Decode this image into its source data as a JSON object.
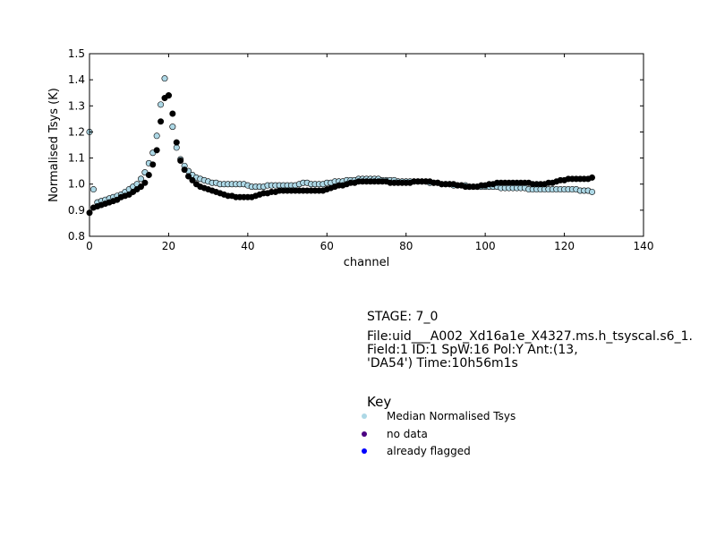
{
  "chart_data": {
    "type": "scatter",
    "title": "",
    "xlabel": "channel",
    "ylabel": "Normalised Tsys (K)",
    "xlim": [
      0,
      140
    ],
    "ylim": [
      0.8,
      1.5
    ],
    "xticks": [
      0,
      20,
      40,
      60,
      80,
      100,
      120,
      140
    ],
    "yticks": [
      0.8,
      0.9,
      1.0,
      1.1,
      1.2,
      1.3,
      1.4,
      1.5
    ],
    "grid": false,
    "series": [
      {
        "name": "Median Normalised Tsys",
        "color": "#add8e6",
        "x": [
          0,
          1,
          2,
          3,
          4,
          5,
          6,
          7,
          8,
          9,
          10,
          11,
          12,
          13,
          14,
          15,
          16,
          17,
          18,
          19,
          20,
          21,
          22,
          23,
          24,
          25,
          26,
          27,
          28,
          29,
          30,
          31,
          32,
          33,
          34,
          35,
          36,
          37,
          38,
          39,
          40,
          41,
          42,
          43,
          44,
          45,
          46,
          47,
          48,
          49,
          50,
          51,
          52,
          53,
          54,
          55,
          56,
          57,
          58,
          59,
          60,
          61,
          62,
          63,
          64,
          65,
          66,
          67,
          68,
          69,
          70,
          71,
          72,
          73,
          74,
          75,
          76,
          77,
          78,
          79,
          80,
          81,
          82,
          83,
          84,
          85,
          86,
          87,
          88,
          89,
          90,
          91,
          92,
          93,
          94,
          95,
          96,
          97,
          98,
          99,
          100,
          101,
          102,
          103,
          104,
          105,
          106,
          107,
          108,
          109,
          110,
          111,
          112,
          113,
          114,
          115,
          116,
          117,
          118,
          119,
          120,
          121,
          122,
          123,
          124,
          125,
          126,
          127
        ],
        "y": [
          1.2,
          0.98,
          0.93,
          0.935,
          0.94,
          0.945,
          0.95,
          0.955,
          0.96,
          0.97,
          0.98,
          0.99,
          1.0,
          1.02,
          1.045,
          1.08,
          1.12,
          1.185,
          1.305,
          1.405,
          1.34,
          1.22,
          1.14,
          1.095,
          1.07,
          1.05,
          1.035,
          1.025,
          1.02,
          1.015,
          1.01,
          1.005,
          1.005,
          1.0,
          1.0,
          1.0,
          1.0,
          1.0,
          1.0,
          1.0,
          0.995,
          0.99,
          0.99,
          0.99,
          0.99,
          0.995,
          0.995,
          0.995,
          0.995,
          0.995,
          0.995,
          0.995,
          0.995,
          1.0,
          1.005,
          1.005,
          1.0,
          1.0,
          1.0,
          1.0,
          1.005,
          1.005,
          1.01,
          1.01,
          1.01,
          1.015,
          1.015,
          1.015,
          1.02,
          1.02,
          1.02,
          1.02,
          1.02,
          1.02,
          1.015,
          1.015,
          1.015,
          1.015,
          1.01,
          1.01,
          1.01,
          1.01,
          1.01,
          1.01,
          1.01,
          1.01,
          1.005,
          1.005,
          1.005,
          1.0,
          1.0,
          1.0,
          0.995,
          0.995,
          0.995,
          0.995,
          0.99,
          0.99,
          0.99,
          0.99,
          0.99,
          0.99,
          0.99,
          0.99,
          0.985,
          0.985,
          0.985,
          0.985,
          0.985,
          0.985,
          0.985,
          0.98,
          0.98,
          0.98,
          0.98,
          0.98,
          0.98,
          0.98,
          0.98,
          0.98,
          0.98,
          0.98,
          0.98,
          0.98,
          0.975,
          0.975,
          0.975,
          0.97
        ]
      },
      {
        "name": "",
        "color": "#000000",
        "x": [
          0,
          1,
          2,
          3,
          4,
          5,
          6,
          7,
          8,
          9,
          10,
          11,
          12,
          13,
          14,
          15,
          16,
          17,
          18,
          19,
          20,
          21,
          22,
          23,
          24,
          25,
          26,
          27,
          28,
          29,
          30,
          31,
          32,
          33,
          34,
          35,
          36,
          37,
          38,
          39,
          40,
          41,
          42,
          43,
          44,
          45,
          46,
          47,
          48,
          49,
          50,
          51,
          52,
          53,
          54,
          55,
          56,
          57,
          58,
          59,
          60,
          61,
          62,
          63,
          64,
          65,
          66,
          67,
          68,
          69,
          70,
          71,
          72,
          73,
          74,
          75,
          76,
          77,
          78,
          79,
          80,
          81,
          82,
          83,
          84,
          85,
          86,
          87,
          88,
          89,
          90,
          91,
          92,
          93,
          94,
          95,
          96,
          97,
          98,
          99,
          100,
          101,
          102,
          103,
          104,
          105,
          106,
          107,
          108,
          109,
          110,
          111,
          112,
          113,
          114,
          115,
          116,
          117,
          118,
          119,
          120,
          121,
          122,
          123,
          124,
          125,
          126,
          127
        ],
        "y": [
          0.89,
          0.91,
          0.915,
          0.92,
          0.925,
          0.93,
          0.935,
          0.94,
          0.95,
          0.955,
          0.96,
          0.97,
          0.98,
          0.99,
          1.005,
          1.035,
          1.075,
          1.13,
          1.24,
          1.33,
          1.34,
          1.27,
          1.16,
          1.09,
          1.055,
          1.03,
          1.015,
          1.0,
          0.99,
          0.985,
          0.98,
          0.975,
          0.97,
          0.965,
          0.96,
          0.955,
          0.955,
          0.95,
          0.95,
          0.95,
          0.95,
          0.95,
          0.955,
          0.96,
          0.965,
          0.965,
          0.97,
          0.97,
          0.975,
          0.975,
          0.975,
          0.975,
          0.975,
          0.975,
          0.975,
          0.975,
          0.975,
          0.975,
          0.975,
          0.975,
          0.98,
          0.985,
          0.99,
          0.995,
          0.995,
          1.0,
          1.005,
          1.005,
          1.01,
          1.01,
          1.01,
          1.01,
          1.01,
          1.01,
          1.01,
          1.01,
          1.005,
          1.005,
          1.005,
          1.005,
          1.005,
          1.005,
          1.01,
          1.01,
          1.01,
          1.01,
          1.01,
          1.005,
          1.005,
          1.0,
          1.0,
          1.0,
          1.0,
          0.995,
          0.995,
          0.99,
          0.99,
          0.99,
          0.99,
          0.995,
          0.995,
          1.0,
          1.0,
          1.005,
          1.005,
          1.005,
          1.005,
          1.005,
          1.005,
          1.005,
          1.005,
          1.005,
          1.0,
          1.0,
          1.0,
          1.0,
          1.005,
          1.005,
          1.01,
          1.015,
          1.015,
          1.02,
          1.02,
          1.02,
          1.02,
          1.02,
          1.02,
          1.025
        ]
      }
    ]
  },
  "stage": "STAGE: 7_0",
  "file_info": "File:uid___A002_Xd16a1e_X4327.ms.h_tsyscal.s6_1.\nField:1 ID:1 SpW:16 Pol:Y Ant:(13,\n'DA54') Time:10h56m1s",
  "key": {
    "title": "Key",
    "items": [
      {
        "label": "Median Normalised Tsys",
        "color": "#add8e6"
      },
      {
        "label": "no data",
        "color": "#4b0082"
      },
      {
        "label": "already flagged",
        "color": "#0000ff"
      }
    ]
  }
}
